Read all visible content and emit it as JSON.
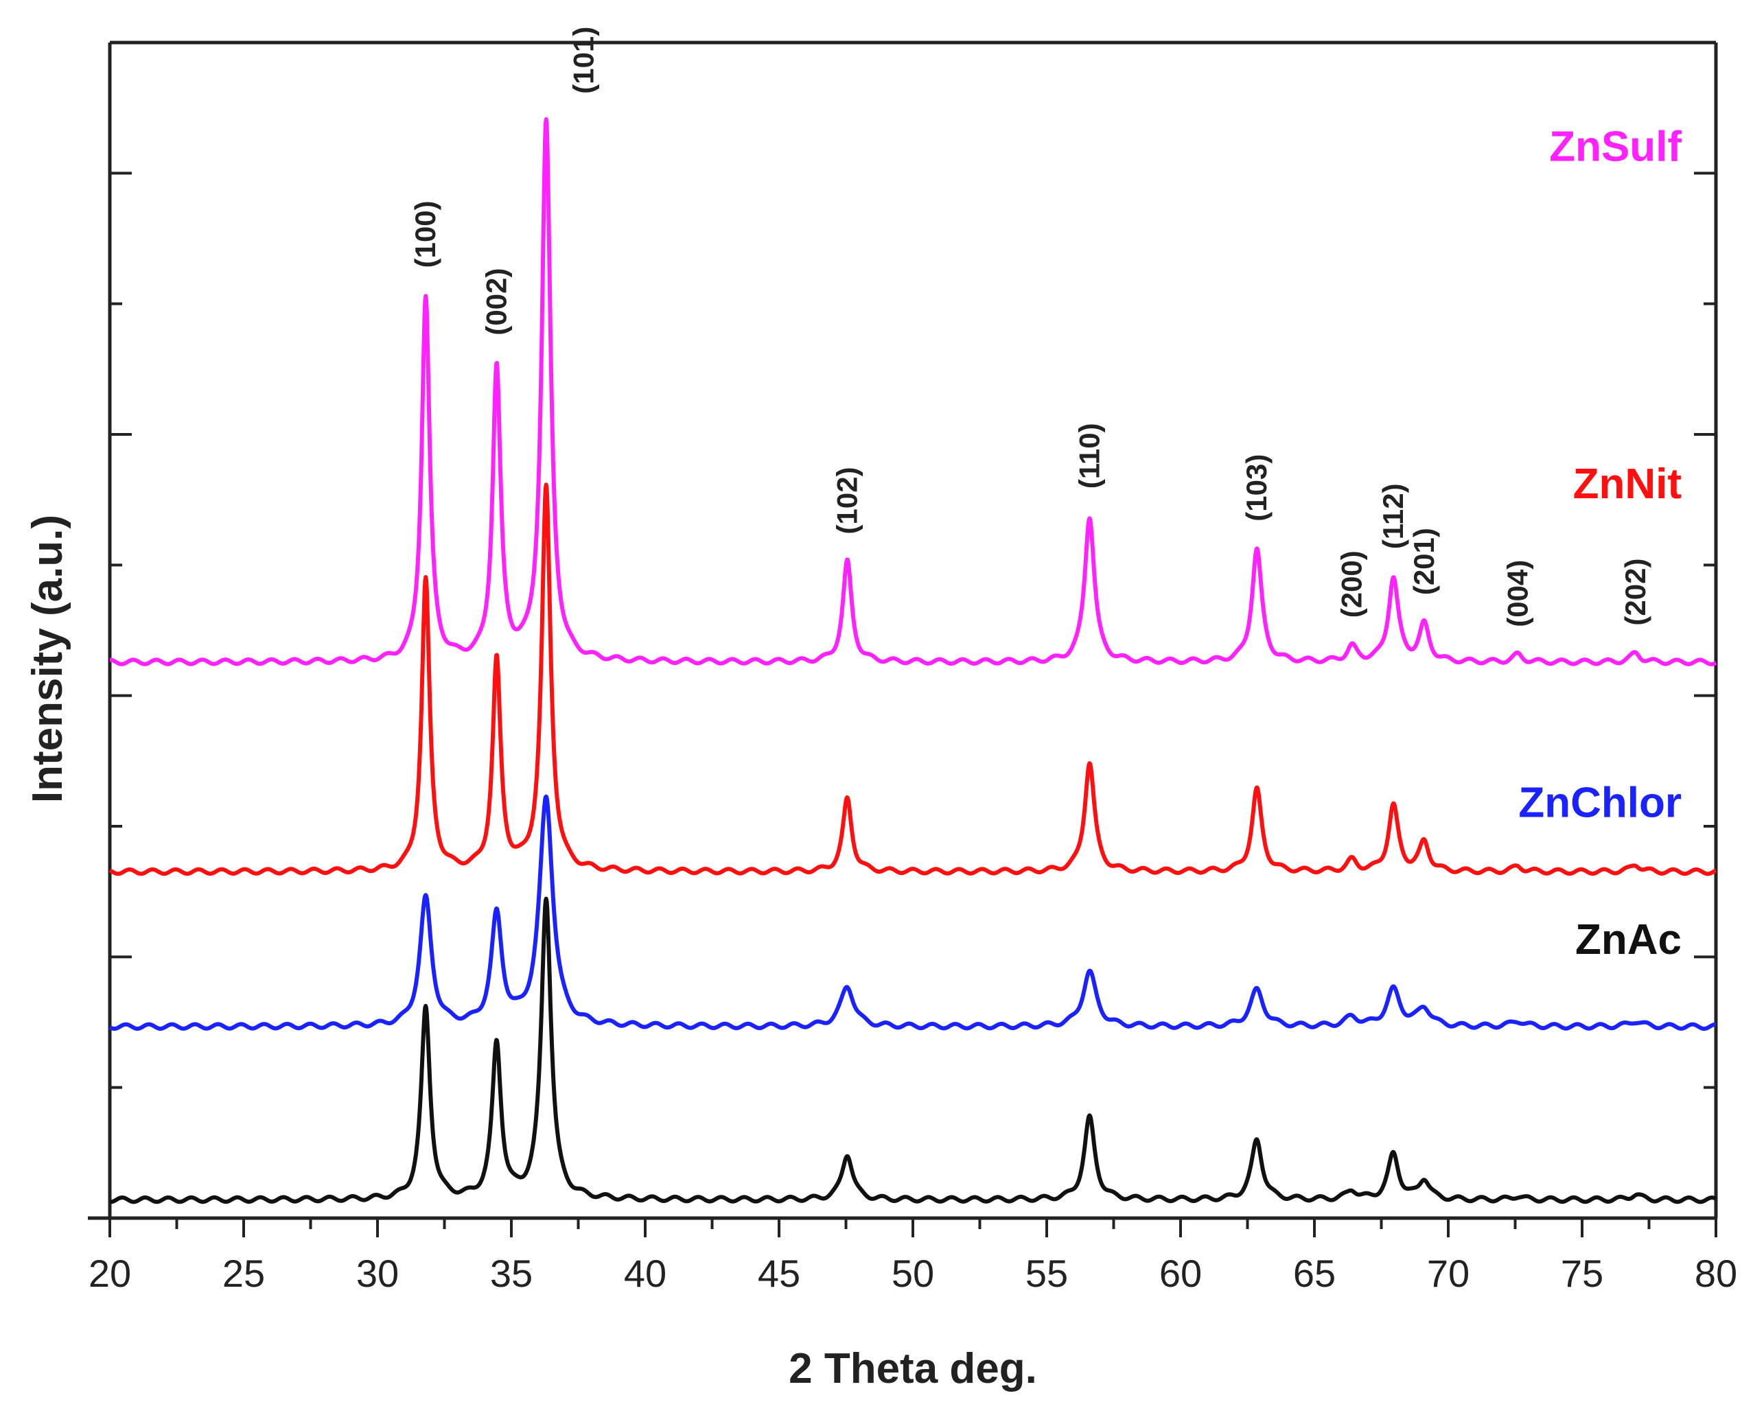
{
  "chart_data": {
    "type": "line",
    "xlabel": "2 Theta deg.",
    "ylabel": "Intensity (a.u.)",
    "xlim": [
      20,
      80
    ],
    "x_ticks": [
      "20",
      "25",
      "30",
      "35",
      "40",
      "45",
      "50",
      "55",
      "60",
      "65",
      "70",
      "75",
      "80"
    ],
    "y_ticks_labeled": false,
    "grid": false,
    "legend": "inline labels at right end of each trace",
    "series": [
      {
        "name": "ZnSulf",
        "color": "#ff22ff",
        "baseline": 3.05,
        "peaks": [
          {
            "x": 31.8,
            "h": 2.0,
            "w": 0.18
          },
          {
            "x": 34.45,
            "h": 1.6,
            "w": 0.18
          },
          {
            "x": 36.3,
            "h": 2.95,
            "w": 0.2
          },
          {
            "x": 47.55,
            "h": 0.55,
            "w": 0.2
          },
          {
            "x": 56.6,
            "h": 0.8,
            "w": 0.22
          },
          {
            "x": 62.85,
            "h": 0.62,
            "w": 0.22
          },
          {
            "x": 66.4,
            "h": 0.08,
            "w": 0.22
          },
          {
            "x": 67.95,
            "h": 0.46,
            "w": 0.22
          },
          {
            "x": 69.1,
            "h": 0.2,
            "w": 0.22
          },
          {
            "x": 72.6,
            "h": 0.04,
            "w": 0.22
          },
          {
            "x": 77.0,
            "h": 0.05,
            "w": 0.22
          }
        ]
      },
      {
        "name": "ZnNit",
        "color": "#ff1010",
        "baseline": 1.9,
        "peaks": [
          {
            "x": 31.8,
            "h": 1.6,
            "w": 0.18
          },
          {
            "x": 34.45,
            "h": 1.15,
            "w": 0.18
          },
          {
            "x": 36.3,
            "h": 2.1,
            "w": 0.2
          },
          {
            "x": 47.55,
            "h": 0.4,
            "w": 0.2
          },
          {
            "x": 56.6,
            "h": 0.6,
            "w": 0.22
          },
          {
            "x": 62.85,
            "h": 0.45,
            "w": 0.22
          },
          {
            "x": 66.4,
            "h": 0.06,
            "w": 0.22
          },
          {
            "x": 67.95,
            "h": 0.36,
            "w": 0.22
          },
          {
            "x": 69.1,
            "h": 0.16,
            "w": 0.22
          },
          {
            "x": 72.6,
            "h": 0.03,
            "w": 0.22
          },
          {
            "x": 77.0,
            "h": 0.04,
            "w": 0.22
          }
        ]
      },
      {
        "name": "ZnChlor",
        "color": "#1a22ff",
        "baseline": 1.05,
        "peaks": [
          {
            "x": 31.8,
            "h": 0.7,
            "w": 0.26
          },
          {
            "x": 34.45,
            "h": 0.6,
            "w": 0.24
          },
          {
            "x": 36.3,
            "h": 1.25,
            "w": 0.3
          },
          {
            "x": 47.55,
            "h": 0.22,
            "w": 0.3
          },
          {
            "x": 56.6,
            "h": 0.3,
            "w": 0.3
          },
          {
            "x": 62.85,
            "h": 0.2,
            "w": 0.3
          },
          {
            "x": 66.4,
            "h": 0.05,
            "w": 0.3
          },
          {
            "x": 67.95,
            "h": 0.2,
            "w": 0.3
          },
          {
            "x": 69.1,
            "h": 0.1,
            "w": 0.3
          },
          {
            "x": 72.6,
            "h": 0.03,
            "w": 0.3
          },
          {
            "x": 77.0,
            "h": 0.03,
            "w": 0.3
          }
        ]
      },
      {
        "name": "ZnAc",
        "color": "#111111",
        "baseline": 0.1,
        "peaks": [
          {
            "x": 31.8,
            "h": 1.05,
            "w": 0.2
          },
          {
            "x": 34.45,
            "h": 0.85,
            "w": 0.2
          },
          {
            "x": 36.3,
            "h": 1.65,
            "w": 0.22
          },
          {
            "x": 47.55,
            "h": 0.25,
            "w": 0.24
          },
          {
            "x": 56.6,
            "h": 0.45,
            "w": 0.24
          },
          {
            "x": 62.85,
            "h": 0.33,
            "w": 0.24
          },
          {
            "x": 66.4,
            "h": 0.05,
            "w": 0.24
          },
          {
            "x": 67.95,
            "h": 0.25,
            "w": 0.24
          },
          {
            "x": 69.1,
            "h": 0.11,
            "w": 0.24
          },
          {
            "x": 72.6,
            "h": 0.02,
            "w": 0.24
          },
          {
            "x": 77.0,
            "h": 0.03,
            "w": 0.24
          }
        ]
      }
    ],
    "annotations": [
      {
        "text": "(100)",
        "x": 31.8
      },
      {
        "text": "(002)",
        "x": 34.45
      },
      {
        "text": "(101)",
        "x": 36.3
      },
      {
        "text": "(102)",
        "x": 47.55
      },
      {
        "text": "(110)",
        "x": 56.6
      },
      {
        "text": "(103)",
        "x": 62.85
      },
      {
        "text": "(200)",
        "x": 66.4
      },
      {
        "text": "(112)",
        "x": 67.95
      },
      {
        "text": "(201)",
        "x": 69.1
      },
      {
        "text": "(004)",
        "x": 72.6
      },
      {
        "text": "(202)",
        "x": 77.0
      }
    ]
  }
}
